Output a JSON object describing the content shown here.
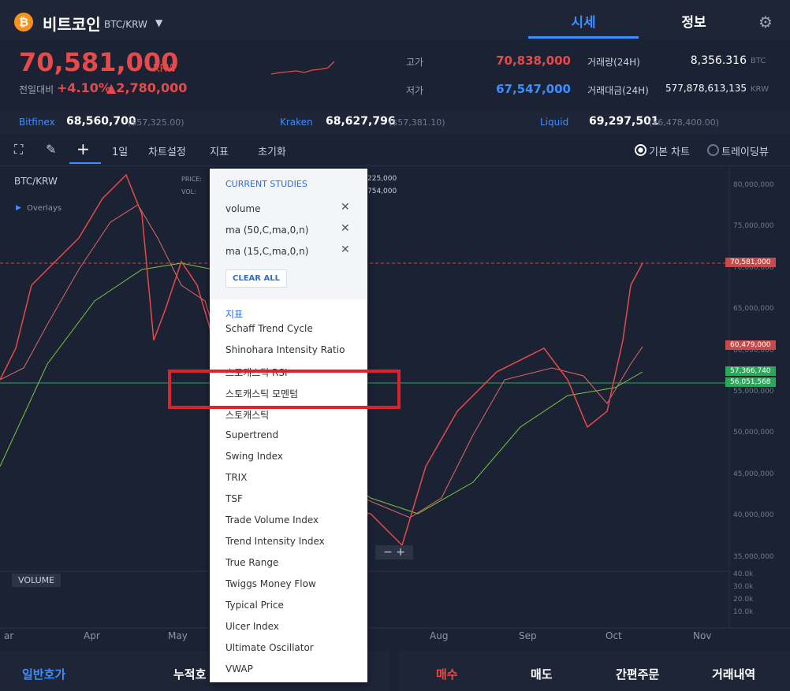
{
  "header": {
    "coin": "비트코인",
    "pair": "BTC/KRW",
    "tabs": [
      "시세",
      "정보"
    ]
  },
  "price": {
    "value": "70,581,000",
    "unit": "KRW",
    "change_label": "전일대비",
    "change_pct": "+4.10%",
    "change_amt": "▲2,780,000"
  },
  "stats": [
    {
      "label": "고가",
      "value": "70,838,000"
    },
    {
      "label": "저가",
      "value": "67,547,000"
    }
  ],
  "volume_stats": [
    {
      "label": "거래량(24H)",
      "value": "8,356.316",
      "unit": "BTC"
    },
    {
      "label": "거래대금(24H)",
      "value": "577,878,613,135",
      "unit": "KRW"
    }
  ],
  "exchanges": [
    {
      "name": "Bitfinex",
      "price": "68,560,700",
      "usd": "($57,325.00)"
    },
    {
      "name": "Kraken",
      "price": "68,627,796",
      "usd": "($57,381.10)"
    },
    {
      "name": "Liquid",
      "price": "69,297,501",
      "usd": "(¥6,478,400.00)"
    }
  ],
  "toolbar": {
    "items": [
      "1일",
      "차트설정",
      "지표",
      "초기화"
    ],
    "chart_types": [
      "기본 차트",
      "트레이딩뷰"
    ]
  },
  "chart": {
    "symbol": "BTC/KRW",
    "overlays": "Overlays",
    "legend": [
      "PRICE:",
      "VOL:"
    ],
    "legend_values": [
      "225,000",
      "754,000"
    ],
    "price_axis": [
      "80,000,000",
      "75,000,000",
      "70,000,000",
      "65,000,000",
      "60,000,000",
      "55,000,000",
      "50,000,000",
      "45,000,000",
      "40,000,000",
      "35,000,000"
    ],
    "price_tags": [
      "70,581,000",
      "60,479,000",
      "57,366,740",
      "56,051,568"
    ],
    "volume_label": "VOLUME",
    "volume_axis": [
      "40.0k",
      "30.0k",
      "20.0k",
      "10.0k"
    ],
    "months": [
      "ar",
      "Apr",
      "May",
      "Aug",
      "Sep",
      "Oct",
      "Nov"
    ]
  },
  "menu": {
    "heading": "CURRENT STUDIES",
    "studies": [
      "volume",
      "ma (50,C,ma,0,n)",
      "ma (15,C,ma,0,n)"
    ],
    "clear": "CLEAR ALL",
    "section": "지표",
    "items": [
      "Schaff Trend Cycle",
      "Shinohara Intensity Ratio",
      "스토캐스틱 RSI",
      "스토캐스틱 모멘텀",
      "스토캐스틱",
      "Supertrend",
      "Swing Index",
      "TRIX",
      "TSF",
      "Trade Volume Index",
      "Trend Intensity Index",
      "True Range",
      "Twiggs Money Flow",
      "Typical Price",
      "Ulcer Index",
      "Ultimate Oscillator",
      "VWAP"
    ]
  },
  "bottom": {
    "left": [
      "일반호가",
      "누적호"
    ],
    "right": [
      "매수",
      "매도",
      "간편주문",
      "거래내역"
    ]
  }
}
